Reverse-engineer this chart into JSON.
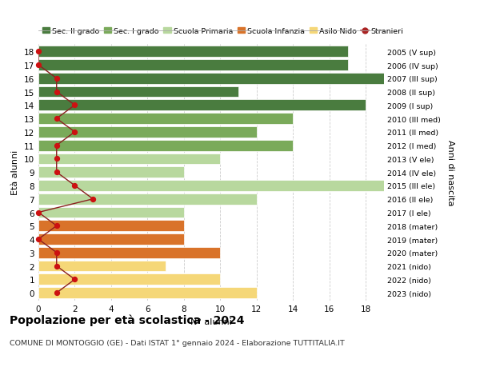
{
  "ages": [
    18,
    17,
    16,
    15,
    14,
    13,
    12,
    11,
    10,
    9,
    8,
    7,
    6,
    5,
    4,
    3,
    2,
    1,
    0
  ],
  "right_labels": [
    "2005 (V sup)",
    "2006 (IV sup)",
    "2007 (III sup)",
    "2008 (II sup)",
    "2009 (I sup)",
    "2010 (III med)",
    "2011 (II med)",
    "2012 (I med)",
    "2013 (V ele)",
    "2014 (IV ele)",
    "2015 (III ele)",
    "2016 (II ele)",
    "2017 (I ele)",
    "2018 (mater)",
    "2019 (mater)",
    "2020 (mater)",
    "2021 (nido)",
    "2022 (nido)",
    "2023 (nido)"
  ],
  "bar_values": [
    17,
    17,
    19,
    11,
    18,
    14,
    12,
    14,
    10,
    8,
    19,
    12,
    8,
    8,
    8,
    10,
    7,
    10,
    12
  ],
  "bar_colors": [
    "#4a7c3f",
    "#4a7c3f",
    "#4a7c3f",
    "#4a7c3f",
    "#4a7c3f",
    "#7aaa5a",
    "#7aaa5a",
    "#7aaa5a",
    "#b8d89e",
    "#b8d89e",
    "#b8d89e",
    "#b8d89e",
    "#b8d89e",
    "#d9732a",
    "#d9732a",
    "#d9732a",
    "#f5d778",
    "#f5d778",
    "#f5d778"
  ],
  "stranieri_values": [
    0,
    0,
    1,
    1,
    2,
    1,
    2,
    1,
    1,
    1,
    2,
    3,
    0,
    1,
    0,
    1,
    1,
    2,
    1
  ],
  "legend_labels": [
    "Sec. II grado",
    "Sec. I grado",
    "Scuola Primaria",
    "Scuola Infanzia",
    "Asilo Nido",
    "Stranieri"
  ],
  "legend_colors": [
    "#4a7c3f",
    "#7aaa5a",
    "#b8d89e",
    "#d9732a",
    "#f5d778",
    "#aa2222"
  ],
  "xlabel": "N° alunni",
  "ylabel_left": "Età alunni",
  "ylabel_right": "Anni di nascita",
  "title": "Popolazione per età scolastica - 2024",
  "subtitle": "COMUNE DI MONTOGGIO (GE) - Dati ISTAT 1° gennaio 2024 - Elaborazione TUTTITALIA.IT",
  "xlim": [
    0,
    19
  ],
  "xticks": [
    0,
    2,
    4,
    6,
    8,
    10,
    12,
    14,
    16,
    18
  ],
  "background_color": "#ffffff"
}
